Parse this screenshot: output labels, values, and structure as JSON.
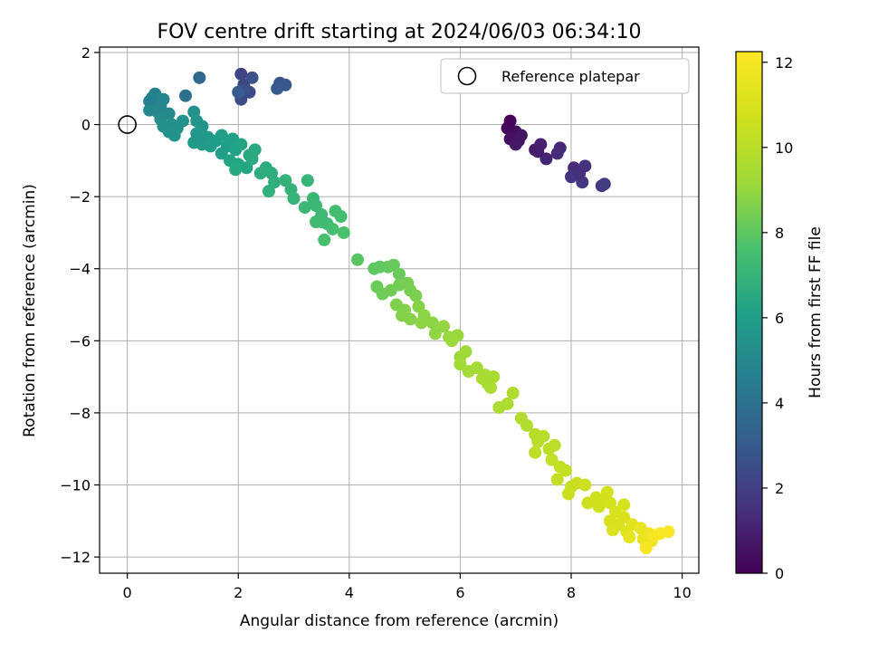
{
  "chart_data": {
    "type": "scatter",
    "title": "FOV centre drift starting at 2024/06/03 06:34:10",
    "xlabel": "Angular distance from reference (arcmin)",
    "ylabel": "Rotation from reference (arcmin)",
    "xlim": [
      -0.5,
      10.3
    ],
    "ylim": [
      -12.45,
      2.15
    ],
    "xticks": [
      0,
      2,
      4,
      6,
      8,
      10
    ],
    "yticks": [
      2,
      0,
      -2,
      -4,
      -6,
      -8,
      -10,
      -12
    ],
    "grid": true,
    "legend": {
      "position": "top-right",
      "entries": [
        "Reference platepar"
      ]
    },
    "reference_point": {
      "x": 0,
      "y": 0
    },
    "colorbar": {
      "label": "Hours from first FF file",
      "range": [
        0,
        12.25
      ],
      "ticks": [
        0,
        2,
        4,
        6,
        8,
        10,
        12
      ],
      "colormap": "viridis"
    },
    "points": [
      [
        6.9,
        0.1,
        0.1
      ],
      [
        6.85,
        -0.1,
        0.2
      ],
      [
        7.0,
        -0.2,
        0.3
      ],
      [
        6.9,
        -0.4,
        0.4
      ],
      [
        7.05,
        -0.45,
        0.5
      ],
      [
        7.1,
        -0.3,
        0.6
      ],
      [
        7.35,
        -0.7,
        0.8
      ],
      [
        7.45,
        -0.55,
        1.0
      ],
      [
        7.55,
        -0.95,
        1.1
      ],
      [
        7.4,
        -0.75,
        0.9
      ],
      [
        7.8,
        -0.65,
        1.2
      ],
      [
        7.75,
        -0.8,
        1.3
      ],
      [
        8.05,
        -1.2,
        1.4
      ],
      [
        8.25,
        -1.15,
        1.5
      ],
      [
        8.0,
        -1.45,
        1.6
      ],
      [
        8.2,
        -1.6,
        1.7
      ],
      [
        8.55,
        -1.7,
        1.8
      ],
      [
        8.6,
        -1.65,
        1.9
      ],
      [
        8.15,
        -1.35,
        1.45
      ],
      [
        7.0,
        -0.55,
        0.7
      ],
      [
        2.05,
        1.4,
        2.2
      ],
      [
        2.1,
        1.1,
        2.3
      ],
      [
        2.2,
        0.9,
        2.4
      ],
      [
        2.05,
        0.7,
        2.5
      ],
      [
        2.1,
        0.95,
        2.6
      ],
      [
        2.25,
        1.3,
        2.7
      ],
      [
        2.75,
        1.15,
        2.8
      ],
      [
        2.85,
        1.1,
        2.9
      ],
      [
        2.7,
        1.0,
        3.0
      ],
      [
        2.0,
        0.9,
        3.1
      ],
      [
        1.3,
        1.3,
        3.6
      ],
      [
        1.05,
        0.8,
        4.0
      ],
      [
        0.45,
        0.75,
        4.4
      ],
      [
        0.55,
        0.6,
        4.5
      ],
      [
        0.4,
        0.65,
        4.6
      ],
      [
        0.5,
        0.85,
        4.7
      ],
      [
        0.6,
        0.5,
        4.8
      ],
      [
        0.65,
        0.7,
        4.9
      ],
      [
        0.4,
        0.4,
        4.9
      ],
      [
        0.55,
        0.35,
        5.0
      ],
      [
        0.75,
        0.3,
        5.1
      ],
      [
        0.6,
        0.15,
        5.2
      ],
      [
        0.8,
        0.0,
        5.3
      ],
      [
        0.65,
        -0.05,
        5.35
      ],
      [
        0.9,
        -0.1,
        5.4
      ],
      [
        1.0,
        0.1,
        5.5
      ],
      [
        1.2,
        0.35,
        5.5
      ],
      [
        1.25,
        0.1,
        5.55
      ],
      [
        1.35,
        -0.05,
        5.6
      ],
      [
        1.25,
        -0.25,
        5.7
      ],
      [
        1.45,
        -0.35,
        5.75
      ],
      [
        1.2,
        -0.5,
        5.8
      ],
      [
        1.35,
        -0.55,
        5.85
      ],
      [
        1.5,
        -0.6,
        5.9
      ],
      [
        1.6,
        -0.45,
        5.95
      ],
      [
        1.8,
        -0.6,
        6.0
      ],
      [
        1.7,
        -0.8,
        6.05
      ],
      [
        1.9,
        -0.4,
        6.1
      ],
      [
        1.95,
        -0.7,
        6.15
      ],
      [
        2.05,
        -0.55,
        6.2
      ],
      [
        1.85,
        -1.0,
        6.25
      ],
      [
        2.0,
        -1.1,
        6.3
      ],
      [
        2.15,
        -1.2,
        6.35
      ],
      [
        1.95,
        -1.25,
        6.4
      ],
      [
        2.2,
        -0.85,
        6.45
      ],
      [
        2.3,
        -0.7,
        6.5
      ],
      [
        2.25,
        -0.95,
        6.55
      ],
      [
        0.75,
        -0.2,
        5.45
      ],
      [
        0.85,
        -0.3,
        5.5
      ],
      [
        1.3,
        -0.4,
        5.65
      ],
      [
        2.5,
        -1.2,
        6.6
      ],
      [
        2.6,
        -1.35,
        6.7
      ],
      [
        2.65,
        -1.6,
        6.8
      ],
      [
        2.55,
        -1.85,
        6.85
      ],
      [
        2.85,
        -1.55,
        6.9
      ],
      [
        2.95,
        -1.8,
        6.95
      ],
      [
        3.0,
        -2.05,
        7.0
      ],
      [
        3.25,
        -1.55,
        7.05
      ],
      [
        3.35,
        -2.05,
        7.1
      ],
      [
        3.4,
        -2.25,
        7.15
      ],
      [
        3.2,
        -2.3,
        7.2
      ],
      [
        3.5,
        -2.5,
        7.25
      ],
      [
        3.4,
        -2.7,
        7.3
      ],
      [
        3.6,
        -2.75,
        7.35
      ],
      [
        3.75,
        -2.4,
        7.4
      ],
      [
        3.85,
        -2.55,
        7.45
      ],
      [
        3.7,
        -2.9,
        7.5
      ],
      [
        3.55,
        -3.2,
        7.55
      ],
      [
        3.9,
        -3.0,
        7.6
      ],
      [
        3.5,
        -2.7,
        7.3
      ],
      [
        4.15,
        -3.75,
        7.9
      ],
      [
        4.45,
        -4.0,
        8.0
      ],
      [
        4.55,
        -3.95,
        8.05
      ],
      [
        4.7,
        -3.95,
        8.1
      ],
      [
        4.8,
        -3.9,
        8.15
      ],
      [
        4.9,
        -4.15,
        8.2
      ],
      [
        4.5,
        -4.5,
        8.25
      ],
      [
        4.6,
        -4.7,
        8.3
      ],
      [
        4.75,
        -4.6,
        8.35
      ],
      [
        4.9,
        -4.45,
        8.4
      ],
      [
        5.05,
        -4.4,
        8.45
      ],
      [
        5.1,
        -4.6,
        8.5
      ],
      [
        5.2,
        -4.75,
        8.55
      ],
      [
        4.85,
        -5.0,
        8.6
      ],
      [
        5.0,
        -5.15,
        8.65
      ],
      [
        5.1,
        -5.4,
        8.7
      ],
      [
        5.25,
        -5.05,
        8.75
      ],
      [
        5.35,
        -5.3,
        8.8
      ],
      [
        5.5,
        -5.5,
        8.85
      ],
      [
        5.55,
        -5.8,
        8.9
      ],
      [
        5.7,
        -5.6,
        8.95
      ],
      [
        5.8,
        -5.9,
        9.0
      ],
      [
        5.95,
        -5.85,
        9.05
      ],
      [
        5.85,
        -6.0,
        9.1
      ],
      [
        6.0,
        -6.45,
        9.15
      ],
      [
        6.1,
        -6.3,
        9.2
      ],
      [
        6.0,
        -6.65,
        9.25
      ],
      [
        6.15,
        -6.85,
        9.3
      ],
      [
        6.3,
        -6.75,
        9.35
      ],
      [
        6.45,
        -6.95,
        9.4
      ],
      [
        6.5,
        -7.2,
        9.45
      ],
      [
        6.4,
        -7.05,
        9.5
      ],
      [
        6.55,
        -7.3,
        9.55
      ],
      [
        6.7,
        -7.85,
        9.6
      ],
      [
        6.85,
        -7.75,
        9.65
      ],
      [
        6.95,
        -7.45,
        9.7
      ],
      [
        7.1,
        -8.15,
        9.75
      ],
      [
        7.2,
        -8.35,
        9.8
      ],
      [
        7.35,
        -8.6,
        9.9
      ],
      [
        7.4,
        -8.8,
        9.95
      ],
      [
        7.5,
        -8.65,
        10.0
      ],
      [
        7.6,
        -9.0,
        10.05
      ],
      [
        7.7,
        -8.9,
        10.1
      ],
      [
        7.35,
        -9.1,
        10.15
      ],
      [
        7.65,
        -9.3,
        10.2
      ],
      [
        7.8,
        -9.5,
        10.25
      ],
      [
        7.9,
        -9.6,
        10.3
      ],
      [
        7.75,
        -9.85,
        10.35
      ],
      [
        8.0,
        -10.05,
        10.4
      ],
      [
        8.1,
        -9.95,
        10.45
      ],
      [
        7.95,
        -10.25,
        10.5
      ],
      [
        8.25,
        -10.0,
        10.55
      ],
      [
        8.3,
        -10.5,
        10.6
      ],
      [
        8.45,
        -10.35,
        10.65
      ],
      [
        8.5,
        -10.6,
        10.7
      ],
      [
        8.6,
        -10.45,
        10.75
      ],
      [
        8.65,
        -10.2,
        10.8
      ],
      [
        8.7,
        -10.5,
        10.85
      ],
      [
        8.8,
        -10.75,
        10.9
      ],
      [
        8.7,
        -11.0,
        10.95
      ],
      [
        8.85,
        -11.1,
        11.0
      ],
      [
        8.95,
        -10.9,
        11.05
      ],
      [
        8.75,
        -11.25,
        11.1
      ],
      [
        9.0,
        -11.3,
        11.2
      ],
      [
        9.1,
        -11.1,
        11.3
      ],
      [
        9.05,
        -11.45,
        11.4
      ],
      [
        9.25,
        -11.2,
        11.5
      ],
      [
        9.3,
        -11.5,
        11.6
      ],
      [
        9.4,
        -11.35,
        11.7
      ],
      [
        9.45,
        -11.55,
        11.8
      ],
      [
        9.5,
        -11.4,
        11.9
      ],
      [
        9.35,
        -11.75,
        12.0
      ],
      [
        9.75,
        -11.3,
        12.1
      ],
      [
        9.6,
        -11.35,
        12.15
      ],
      [
        8.95,
        -10.55,
        10.9
      ],
      [
        6.6,
        -7.0,
        9.5
      ],
      [
        5.3,
        -5.5,
        8.85
      ],
      [
        4.95,
        -5.3,
        8.7
      ],
      [
        2.4,
        -1.35,
        6.65
      ],
      [
        1.7,
        -0.3,
        6.0
      ]
    ]
  }
}
